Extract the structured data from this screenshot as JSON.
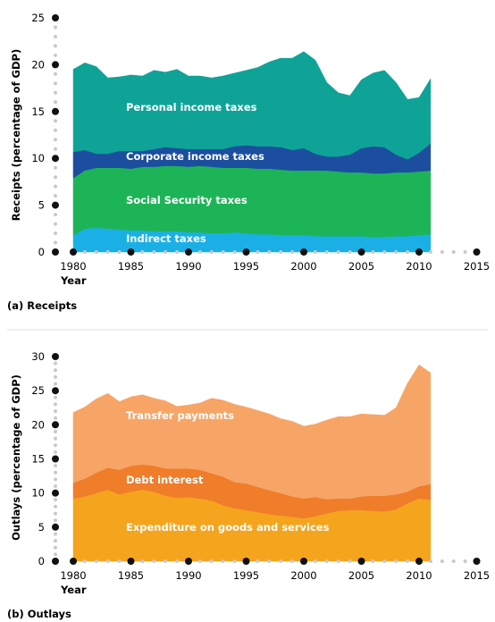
{
  "chart_data": [
    {
      "type": "area",
      "stacked": true,
      "caption": "(a) Receipts",
      "xlabel": "Year",
      "ylabel": "Receipts (percentage of GDP)",
      "xlim": [
        1978,
        2016
      ],
      "ylim": [
        0,
        25
      ],
      "x_ticks": [
        1980,
        1985,
        1990,
        1995,
        2000,
        2005,
        2010,
        2015
      ],
      "y_ticks": [
        0,
        5,
        10,
        15,
        20,
        25
      ],
      "x": [
        1980,
        1981,
        1982,
        1983,
        1984,
        1985,
        1986,
        1987,
        1988,
        1989,
        1990,
        1991,
        1992,
        1993,
        1994,
        1995,
        1996,
        1997,
        1998,
        1999,
        2000,
        2001,
        2002,
        2003,
        2004,
        2005,
        2006,
        2007,
        2008,
        2009,
        2010,
        2011
      ],
      "series": [
        {
          "name": "Indirect taxes",
          "color": "#1ab0e6",
          "values": [
            1.8,
            2.5,
            2.6,
            2.5,
            2.4,
            2.3,
            2.3,
            2.2,
            2.2,
            2.2,
            2.1,
            2.1,
            2.0,
            2.0,
            2.1,
            2.0,
            1.9,
            1.9,
            1.8,
            1.8,
            1.8,
            1.7,
            1.7,
            1.7,
            1.7,
            1.7,
            1.6,
            1.6,
            1.7,
            1.7,
            1.8,
            1.9
          ]
        },
        {
          "name": "Social Security taxes",
          "color": "#1db458",
          "values": [
            6.1,
            6.2,
            6.4,
            6.5,
            6.6,
            6.6,
            6.8,
            6.9,
            7.0,
            7.0,
            7.0,
            7.1,
            7.1,
            7.0,
            6.9,
            7.0,
            7.0,
            7.0,
            7.0,
            6.9,
            6.9,
            7.0,
            7.0,
            6.9,
            6.8,
            6.8,
            6.8,
            6.8,
            6.8,
            6.8,
            6.8,
            6.8
          ]
        },
        {
          "name": "Corporate income taxes",
          "color": "#1c4ea0",
          "values": [
            2.8,
            2.2,
            1.5,
            1.5,
            1.8,
            1.9,
            1.7,
            1.9,
            2.0,
            1.9,
            1.9,
            1.8,
            1.9,
            2.0,
            2.3,
            2.4,
            2.4,
            2.4,
            2.4,
            2.2,
            2.4,
            1.8,
            1.5,
            1.6,
            1.9,
            2.6,
            2.9,
            2.8,
            1.9,
            1.4,
            2.0,
            2.9
          ]
        },
        {
          "name": "Personal income taxes",
          "color": "#0fa398",
          "values": [
            8.8,
            9.3,
            9.3,
            8.1,
            7.9,
            8.1,
            8.0,
            8.4,
            8.0,
            8.4,
            7.8,
            7.8,
            7.6,
            7.8,
            7.8,
            8.0,
            8.4,
            9.0,
            9.5,
            9.8,
            10.3,
            10.0,
            7.9,
            6.8,
            6.3,
            7.3,
            7.8,
            8.2,
            7.7,
            6.4,
            5.9,
            6.9
          ]
        }
      ]
    },
    {
      "type": "area",
      "stacked": true,
      "caption": "(b) Outlays",
      "xlabel": "Year",
      "ylabel": "Outlays (percentage of GDP)",
      "xlim": [
        1978,
        2016
      ],
      "ylim": [
        0,
        30
      ],
      "x_ticks": [
        1980,
        1985,
        1990,
        1995,
        2000,
        2005,
        2010,
        2015
      ],
      "y_ticks": [
        0,
        5,
        10,
        15,
        20,
        25,
        30
      ],
      "x": [
        1980,
        1981,
        1982,
        1983,
        1984,
        1985,
        1986,
        1987,
        1988,
        1989,
        1990,
        1991,
        1992,
        1993,
        1994,
        1995,
        1996,
        1997,
        1998,
        1999,
        2000,
        2001,
        2002,
        2003,
        2004,
        2005,
        2006,
        2007,
        2008,
        2009,
        2010,
        2011
      ],
      "series": [
        {
          "name": "Expenditure on goods and services",
          "color": "#f5a41e",
          "values": [
            9.2,
            9.5,
            10.0,
            10.5,
            9.8,
            10.2,
            10.5,
            10.2,
            9.6,
            9.3,
            9.4,
            9.2,
            8.9,
            8.2,
            7.8,
            7.5,
            7.2,
            6.9,
            6.7,
            6.5,
            6.3,
            6.6,
            7.0,
            7.4,
            7.5,
            7.5,
            7.4,
            7.3,
            7.6,
            8.5,
            9.2,
            9.0
          ]
        },
        {
          "name": "Debt interest",
          "color": "#f07d2a",
          "values": [
            2.3,
            2.6,
            3.0,
            3.2,
            3.6,
            3.8,
            3.7,
            3.8,
            4.0,
            4.3,
            4.2,
            4.2,
            4.0,
            4.2,
            3.8,
            3.9,
            3.7,
            3.5,
            3.3,
            3.0,
            2.9,
            2.8,
            2.1,
            1.8,
            1.7,
            2.0,
            2.2,
            2.3,
            2.2,
            1.7,
            1.8,
            2.3
          ]
        },
        {
          "name": "Transfer payments",
          "color": "#f7a566",
          "values": [
            10.3,
            10.5,
            10.8,
            10.9,
            10.0,
            10.1,
            10.2,
            9.9,
            9.9,
            9.1,
            9.3,
            9.8,
            11.0,
            11.2,
            11.4,
            11.2,
            11.2,
            11.2,
            10.9,
            11.0,
            10.6,
            10.7,
            11.6,
            12.0,
            12.0,
            12.1,
            11.9,
            11.8,
            12.7,
            15.9,
            17.8,
            16.3
          ]
        }
      ]
    }
  ]
}
